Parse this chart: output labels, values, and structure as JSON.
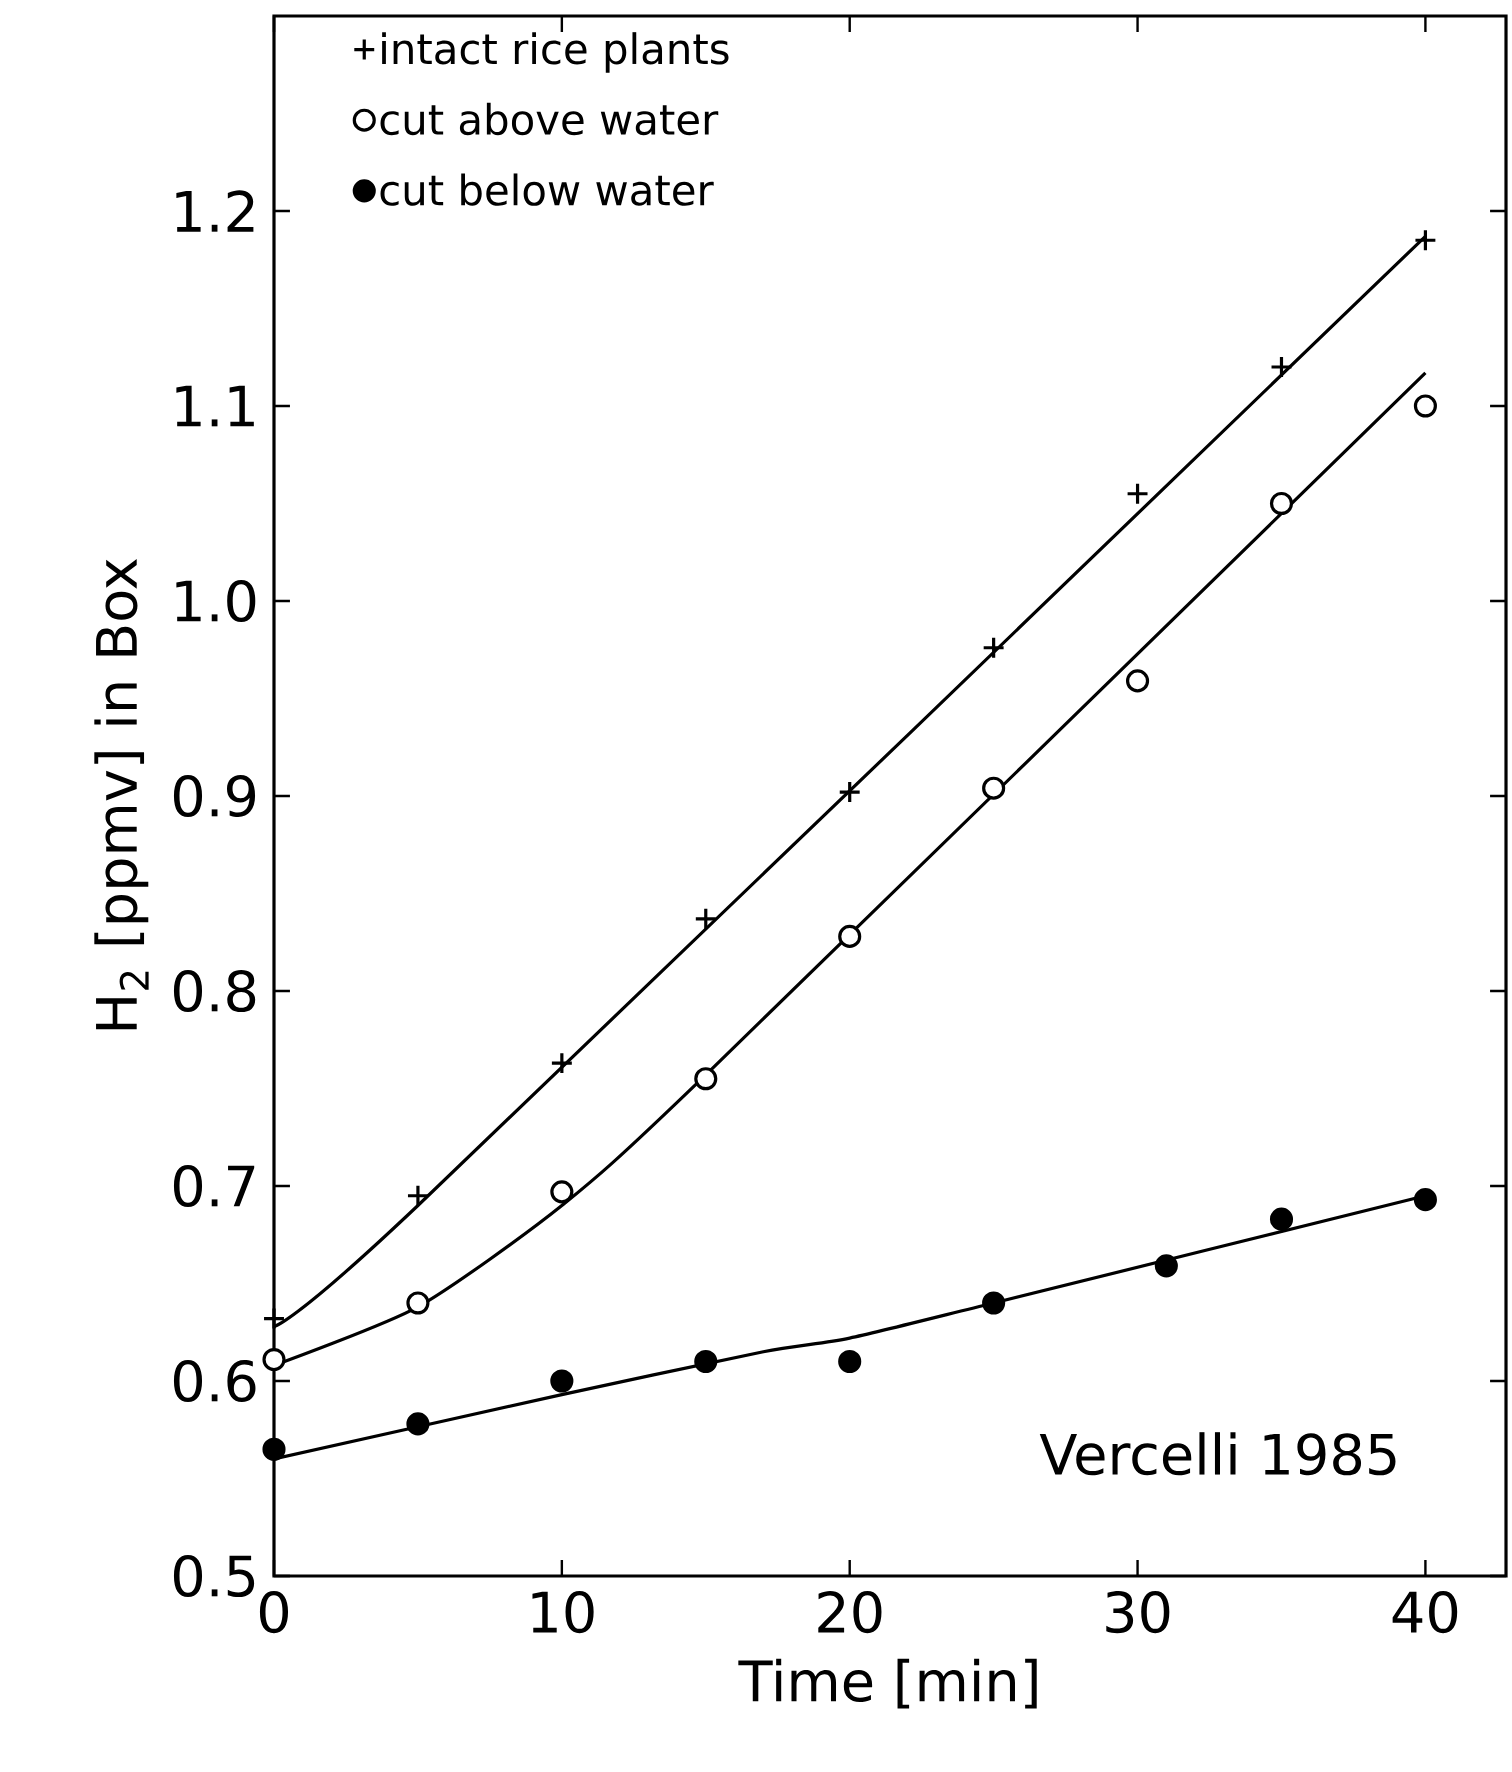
{
  "chart_data": {
    "type": "scatter",
    "xlabel": "Time [min]",
    "ylabel": "H$_{2}$ [ppmv] in Box",
    "xlim": [
      0,
      42.8
    ],
    "ylim": [
      0.5,
      1.3
    ],
    "xticks": [
      0,
      10,
      20,
      30,
      40
    ],
    "yticks": [
      0.5,
      0.6,
      0.7,
      0.8,
      0.9,
      {
        "value": 1.0,
        "label": "1.0"
      },
      1.1,
      1.2
    ],
    "legend": "top left",
    "grid": false,
    "annotations": [
      "Vercelli 1985"
    ],
    "series": [
      {
        "name": "intact rice plants",
        "marker": "cross",
        "color": "#000000",
        "x": [
          0,
          5,
          10,
          15,
          20,
          25,
          30,
          35,
          40
        ],
        "values": [
          0.632,
          0.695,
          0.763,
          0.837,
          0.902,
          0.976,
          1.055,
          1.12,
          1.185
        ]
      },
      {
        "name": "cut above water",
        "marker": "circle-open",
        "color": "#000000",
        "x": [
          0,
          5,
          10,
          15,
          20,
          25,
          30,
          35,
          40
        ],
        "values": [
          0.611,
          0.64,
          0.697,
          0.755,
          0.828,
          0.904,
          0.959,
          1.05,
          1.1
        ]
      },
      {
        "name": "cut below water",
        "marker": "circle",
        "color": "#000000",
        "x": [
          0,
          5,
          10,
          15,
          20,
          25,
          31,
          35,
          40
        ],
        "values": [
          0.565,
          0.578,
          0.6,
          0.61,
          0.61,
          0.64,
          0.659,
          0.683,
          0.693
        ]
      },
      {
        "type": "line",
        "line_style": "solid",
        "color": "#000000",
        "x": [
          0,
          5,
          40
        ],
        "values": [
          0.628,
          0.69,
          1.187
        ]
      },
      {
        "type": "line",
        "line_style": "solid",
        "color": "#000000",
        "x": [
          0,
          5,
          10,
          15,
          40
        ],
        "values": [
          0.608,
          0.638,
          0.69,
          0.757,
          1.117
        ]
      },
      {
        "type": "line",
        "line_style": "solid",
        "color": "#000000",
        "x": [
          0,
          10,
          17,
          20,
          25,
          40
        ],
        "values": [
          0.56,
          0.593,
          0.615,
          0.622,
          0.64,
          0.695
        ]
      }
    ]
  }
}
